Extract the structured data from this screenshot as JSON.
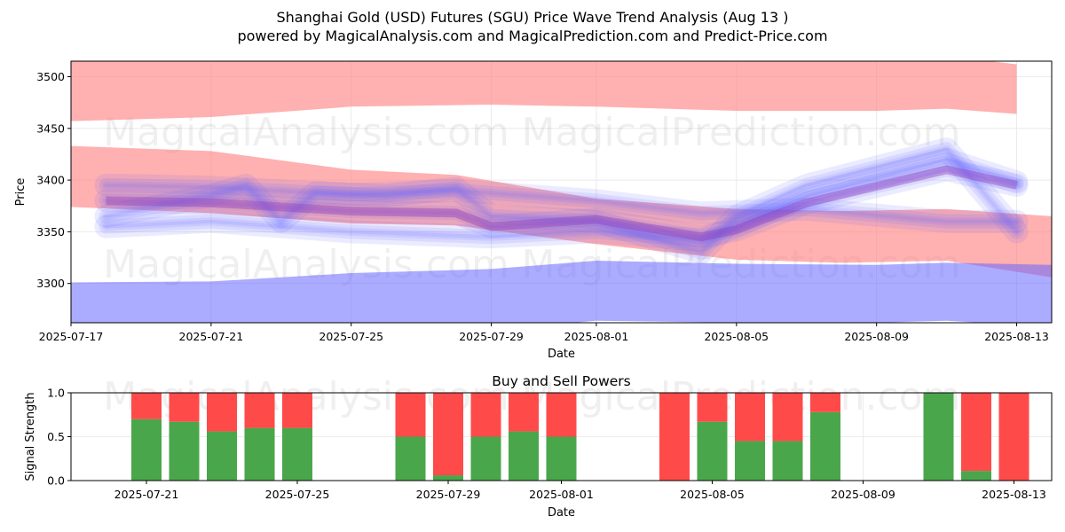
{
  "header": {
    "title": "Shanghai Gold (USD) Futures (SGU) Price Wave Trend Analysis (Aug 13 )",
    "subtitle": "powered by MagicalAnalysis.com and MagicalPrediction.com and Predict-Price.com"
  },
  "watermarks": [
    "MagicalAnalysis.com",
    "MagicalPrediction.com"
  ],
  "colors": {
    "buy": "#4aa64a",
    "sell": "#ff4a4a",
    "band_red": "#ff8080",
    "band_blue": "#6666ff"
  },
  "chart_data": [
    {
      "type": "area",
      "title": "",
      "xlabel": "Date",
      "ylabel": "Price",
      "xlim": [
        "2025-07-17",
        "2025-08-14"
      ],
      "ylim": [
        3262,
        3515
      ],
      "x_ticks": [
        "2025-07-17",
        "2025-07-21",
        "2025-07-25",
        "2025-07-29",
        "2025-08-01",
        "2025-08-05",
        "2025-08-09",
        "2025-08-13"
      ],
      "y_ticks": [
        3300,
        3350,
        3400,
        3450,
        3500
      ],
      "grid": true,
      "red_bands": [
        {
          "x": [
            "2025-07-17",
            "2025-07-21",
            "2025-07-25",
            "2025-07-29",
            "2025-08-01",
            "2025-08-05",
            "2025-08-09",
            "2025-08-11",
            "2025-08-13"
          ],
          "upper": [
            3520,
            3520,
            3520,
            3520,
            3520,
            3520,
            3520,
            3520,
            3512
          ],
          "lower": [
            3457,
            3461,
            3471,
            3473,
            3471,
            3467,
            3467,
            3469,
            3464
          ]
        },
        {
          "x": [
            "2025-07-17",
            "2025-07-21",
            "2025-07-25",
            "2025-07-28",
            "2025-08-01",
            "2025-08-05",
            "2025-08-08",
            "2025-08-11",
            "2025-08-14"
          ],
          "upper": [
            3433,
            3428,
            3410,
            3405,
            3382,
            3372,
            3370,
            3372,
            3365
          ],
          "lower": [
            3374,
            3368,
            3358,
            3356,
            3338,
            3323,
            3320,
            3322,
            3306
          ]
        }
      ],
      "blue_bands": [
        {
          "x": [
            "2025-07-17",
            "2025-07-21",
            "2025-07-25",
            "2025-07-29",
            "2025-08-01",
            "2025-08-05",
            "2025-08-09",
            "2025-08-11",
            "2025-08-14"
          ],
          "upper": [
            3301,
            3302,
            3310,
            3314,
            3322,
            3319,
            3318,
            3320,
            3318
          ],
          "lower": [
            3255,
            3255,
            3255,
            3255,
            3264,
            3262,
            3262,
            3264,
            3258
          ]
        }
      ],
      "wave_lines": [
        {
          "x": [
            "2025-07-18",
            "2025-07-21",
            "2025-07-25",
            "2025-07-28",
            "2025-08-01",
            "2025-08-04",
            "2025-08-07",
            "2025-08-11",
            "2025-08-13"
          ],
          "y": [
            3395,
            3393,
            3386,
            3390,
            3380,
            3368,
            3372,
            3360,
            3360
          ]
        },
        {
          "x": [
            "2025-07-18",
            "2025-07-21",
            "2025-07-25",
            "2025-07-28",
            "2025-07-29",
            "2025-08-01",
            "2025-08-04",
            "2025-08-05",
            "2025-08-07",
            "2025-08-11",
            "2025-08-13"
          ],
          "y": [
            3380,
            3378,
            3370,
            3368,
            3355,
            3362,
            3345,
            3352,
            3378,
            3410,
            3395
          ]
        },
        {
          "x": [
            "2025-07-18",
            "2025-07-21",
            "2025-07-25",
            "2025-07-29",
            "2025-08-01",
            "2025-08-04",
            "2025-08-05",
            "2025-08-07",
            "2025-08-11",
            "2025-08-13"
          ],
          "y": [
            3355,
            3360,
            3350,
            3345,
            3350,
            3342,
            3355,
            3385,
            3420,
            3398
          ]
        },
        {
          "x": [
            "2025-07-18",
            "2025-07-21",
            "2025-07-22",
            "2025-07-23",
            "2025-07-24",
            "2025-07-26",
            "2025-07-28",
            "2025-07-29",
            "2025-08-01",
            "2025-08-04",
            "2025-08-05",
            "2025-08-07",
            "2025-08-11",
            "2025-08-13"
          ],
          "y": [
            3365,
            3385,
            3395,
            3360,
            3388,
            3385,
            3392,
            3365,
            3360,
            3330,
            3365,
            3395,
            3430,
            3350
          ]
        }
      ]
    },
    {
      "type": "bar",
      "title": "Buy and Sell Powers",
      "xlabel": "Date",
      "ylabel": "Signal Strength",
      "xlim": [
        "2025-07-19",
        "2025-08-14"
      ],
      "ylim": [
        0,
        1.0
      ],
      "x_ticks": [
        "2025-07-21",
        "2025-07-25",
        "2025-07-29",
        "2025-08-01",
        "2025-08-05",
        "2025-08-09",
        "2025-08-13"
      ],
      "y_ticks": [
        "0.0",
        "0.5",
        "1.0"
      ],
      "grid": true,
      "x": [
        "2025-07-21",
        "2025-07-22",
        "2025-07-23",
        "2025-07-24",
        "2025-07-25",
        "2025-07-28",
        "2025-07-29",
        "2025-07-30",
        "2025-07-31",
        "2025-08-01",
        "2025-08-04",
        "2025-08-05",
        "2025-08-06",
        "2025-08-07",
        "2025-08-08",
        "2025-08-11",
        "2025-08-12",
        "2025-08-13"
      ],
      "series": [
        {
          "name": "buy",
          "values": [
            0.7,
            0.67,
            0.56,
            0.6,
            0.6,
            0.5,
            0.06,
            0.5,
            0.56,
            0.5,
            0.0,
            0.67,
            0.45,
            0.45,
            0.78,
            1.0,
            0.11,
            0.0
          ]
        },
        {
          "name": "sell",
          "values": [
            0.3,
            0.33,
            0.44,
            0.4,
            0.4,
            0.5,
            0.94,
            0.5,
            0.44,
            0.5,
            1.0,
            0.33,
            0.55,
            0.55,
            0.22,
            0.0,
            0.89,
            1.0
          ]
        }
      ]
    }
  ]
}
